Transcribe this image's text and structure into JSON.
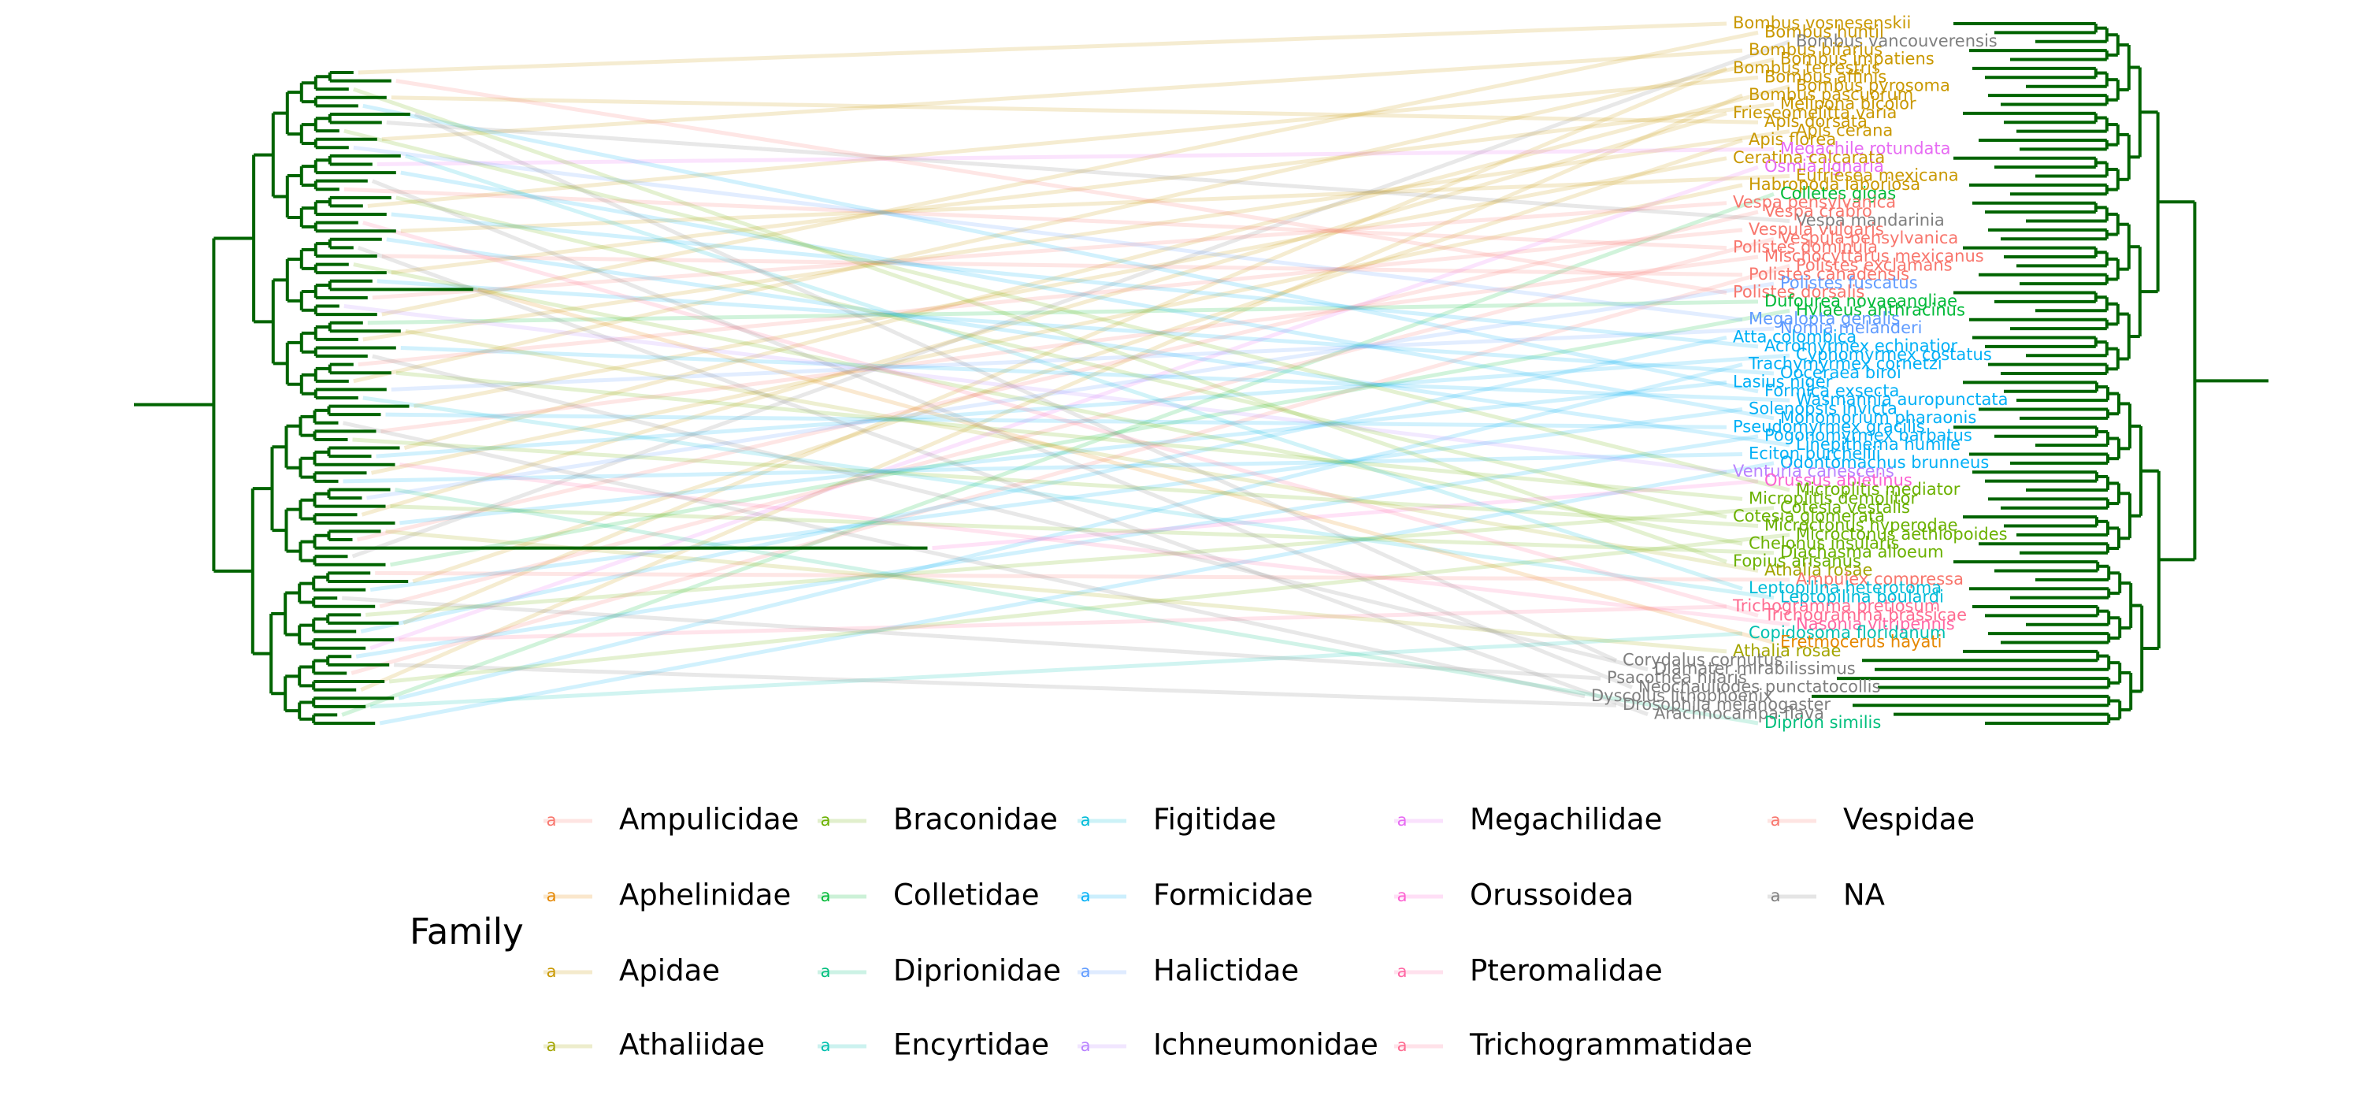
{
  "figure": {
    "branch_color": "#006400",
    "link_colors_note": "links colored by family",
    "right_tree_tips": [
      {
        "label": "Bombus vosnesenskii",
        "family": "Apidae"
      },
      {
        "label": "Bombus huntii",
        "family": "Apidae"
      },
      {
        "label": "Bombus vancouverensis",
        "family": "NA"
      },
      {
        "label": "Bombus bifarius",
        "family": "Apidae"
      },
      {
        "label": "Bombus impatiens",
        "family": "Apidae"
      },
      {
        "label": "Bombus terrestris",
        "family": "Apidae"
      },
      {
        "label": "Bombus affinis",
        "family": "Apidae"
      },
      {
        "label": "Bombus pyrosoma",
        "family": "Apidae"
      },
      {
        "label": "Bombus pascuorum",
        "family": "Apidae"
      },
      {
        "label": "Melipona bicolor",
        "family": "Apidae"
      },
      {
        "label": "Frieseomelitta varia",
        "family": "Apidae"
      },
      {
        "label": "Apis dorsata",
        "family": "Apidae"
      },
      {
        "label": "Apis cerana",
        "family": "Apidae"
      },
      {
        "label": "Apis florea",
        "family": "Apidae"
      },
      {
        "label": "Megachile rotundata",
        "family": "Megachilidae"
      },
      {
        "label": "Ceratina calcarata",
        "family": "Apidae"
      },
      {
        "label": "Osmia lignaria",
        "family": "Megachilidae"
      },
      {
        "label": "Eufriesea mexicana",
        "family": "Apidae"
      },
      {
        "label": "Habropoda laboriosa",
        "family": "Apidae"
      },
      {
        "label": "Colletes gigas",
        "family": "Colletidae"
      },
      {
        "label": "Vespa pensylvanica",
        "family": "Vespidae"
      },
      {
        "label": "Vespa crabro",
        "family": "Vespidae"
      },
      {
        "label": "Vespa mandarinia",
        "family": "NA"
      },
      {
        "label": "Vespula vulgaris",
        "family": "Vespidae"
      },
      {
        "label": "Vespula pensylvanica",
        "family": "Vespidae"
      },
      {
        "label": "Polistes dominula",
        "family": "Vespidae"
      },
      {
        "label": "Mischocyttarus mexicanus",
        "family": "Vespidae"
      },
      {
        "label": "Polistes exclamans",
        "family": "Vespidae"
      },
      {
        "label": "Polistes canadensis",
        "family": "Vespidae"
      },
      {
        "label": "Polistes fuscatus",
        "family": "Halictidae"
      },
      {
        "label": "Polistes dorsalis",
        "family": "Vespidae"
      },
      {
        "label": "Dufourea novaeangliae",
        "family": "Colletidae"
      },
      {
        "label": "Hylaeus anthracinus",
        "family": "Colletidae"
      },
      {
        "label": "Megalopta genalis",
        "family": "Halictidae"
      },
      {
        "label": "Nomia melanderi",
        "family": "Halictidae"
      },
      {
        "label": "Atta colombica",
        "family": "Formicidae"
      },
      {
        "label": "Acromyrmex echinatior",
        "family": "Formicidae"
      },
      {
        "label": "Cyphomyrmex costatus",
        "family": "Formicidae"
      },
      {
        "label": "Trachymyrmex cornetzi",
        "family": "Formicidae"
      },
      {
        "label": "Ooceraea biroi",
        "family": "Formicidae"
      },
      {
        "label": "Lasius niger",
        "family": "Formicidae"
      },
      {
        "label": "Formica exsecta",
        "family": "Formicidae"
      },
      {
        "label": "Wasmannia auropunctata",
        "family": "Formicidae"
      },
      {
        "label": "Solenopsis invicta",
        "family": "Formicidae"
      },
      {
        "label": "Monomorium pharaonis",
        "family": "Formicidae"
      },
      {
        "label": "Pseudomyrmex gracilis",
        "family": "Formicidae"
      },
      {
        "label": "Pogonomyrmex barbatus",
        "family": "Formicidae"
      },
      {
        "label": "Linepithema humile",
        "family": "Formicidae"
      },
      {
        "label": "Eciton burchellii",
        "family": "Formicidae"
      },
      {
        "label": "Odontomachus brunneus",
        "family": "Formicidae"
      },
      {
        "label": "Venturia canescens",
        "family": "Ichneumonidae"
      },
      {
        "label": "Orussus abietinus",
        "family": "Orussoidea"
      },
      {
        "label": "Microplitis mediator",
        "family": "Braconidae"
      },
      {
        "label": "Microplitis demolitor",
        "family": "Braconidae"
      },
      {
        "label": "Cotesia vestalis",
        "family": "Braconidae"
      },
      {
        "label": "Cotesia glomerata",
        "family": "Braconidae"
      },
      {
        "label": "Microctonus hyperodae",
        "family": "Braconidae"
      },
      {
        "label": "Microctonus aethiopoides",
        "family": "Braconidae"
      },
      {
        "label": "Chelonus insularis",
        "family": "Braconidae"
      },
      {
        "label": "Diachasma alloeum",
        "family": "Braconidae"
      },
      {
        "label": "Fopius arisanus",
        "family": "Braconidae"
      },
      {
        "label": "Athalia rosae",
        "family": "Athaliidae"
      },
      {
        "label": "Ampulex compressa",
        "family": "Ampulicidae"
      },
      {
        "label": "Leptopilina heterotoma",
        "family": "Figitidae"
      },
      {
        "label": "Leptopilina boulardi",
        "family": "Figitidae"
      },
      {
        "label": "Trichogramma pretiosum",
        "family": "Trichogrammatidae"
      },
      {
        "label": "Trichogramma brassicae",
        "family": "Trichogrammatidae"
      },
      {
        "label": "Nasonia vitripennis",
        "family": "Pteromalidae"
      },
      {
        "label": "Copidosoma floridanum",
        "family": "Encyrtidae"
      },
      {
        "label": "Eretmocerus hayati",
        "family": "Aphelinidae"
      },
      {
        "label": "Athalia rosae",
        "family": "Athaliidae"
      },
      {
        "label": "Corydalus cornutus",
        "family": "NA"
      },
      {
        "label": "Diamater mirabilissimus",
        "family": "NA"
      },
      {
        "label": "Psacothea hilaris",
        "family": "NA"
      },
      {
        "label": "Neochauliodes punctatocollis",
        "family": "NA"
      },
      {
        "label": "Dyscolus lithophoenix",
        "family": "NA"
      },
      {
        "label": "Drosophila melanogaster",
        "family": "NA"
      },
      {
        "label": "Arachnocampa flava",
        "family": "NA"
      },
      {
        "label": "Diprion similis",
        "family": "Diprionidae"
      }
    ]
  },
  "legend": {
    "title": "Family",
    "key_glyph": "a",
    "items": [
      {
        "label": "Ampulicidae",
        "color": "#F8766D"
      },
      {
        "label": "Aphelinidae",
        "color": "#E58700"
      },
      {
        "label": "Apidae",
        "color": "#C99800"
      },
      {
        "label": "Athaliidae",
        "color": "#A3A500"
      },
      {
        "label": "Braconidae",
        "color": "#6BB100"
      },
      {
        "label": "Colletidae",
        "color": "#00BA38"
      },
      {
        "label": "Diprionidae",
        "color": "#00BF7D"
      },
      {
        "label": "Encyrtidae",
        "color": "#00C0AF"
      },
      {
        "label": "Figitidae",
        "color": "#00BCD8"
      },
      {
        "label": "Formicidae",
        "color": "#00B0F6"
      },
      {
        "label": "Halictidae",
        "color": "#619CFF"
      },
      {
        "label": "Ichneumonidae",
        "color": "#B983FF"
      },
      {
        "label": "Megachilidae",
        "color": "#E76BF3"
      },
      {
        "label": "Orussoidea",
        "color": "#FD61D1"
      },
      {
        "label": "Pteromalidae",
        "color": "#FF67A4"
      },
      {
        "label": "Trichogrammatidae",
        "color": "#FF6C91"
      },
      {
        "label": "Vespidae",
        "color": "#F8766D"
      },
      {
        "label": "NA",
        "color": "#7F7F7F"
      }
    ]
  }
}
